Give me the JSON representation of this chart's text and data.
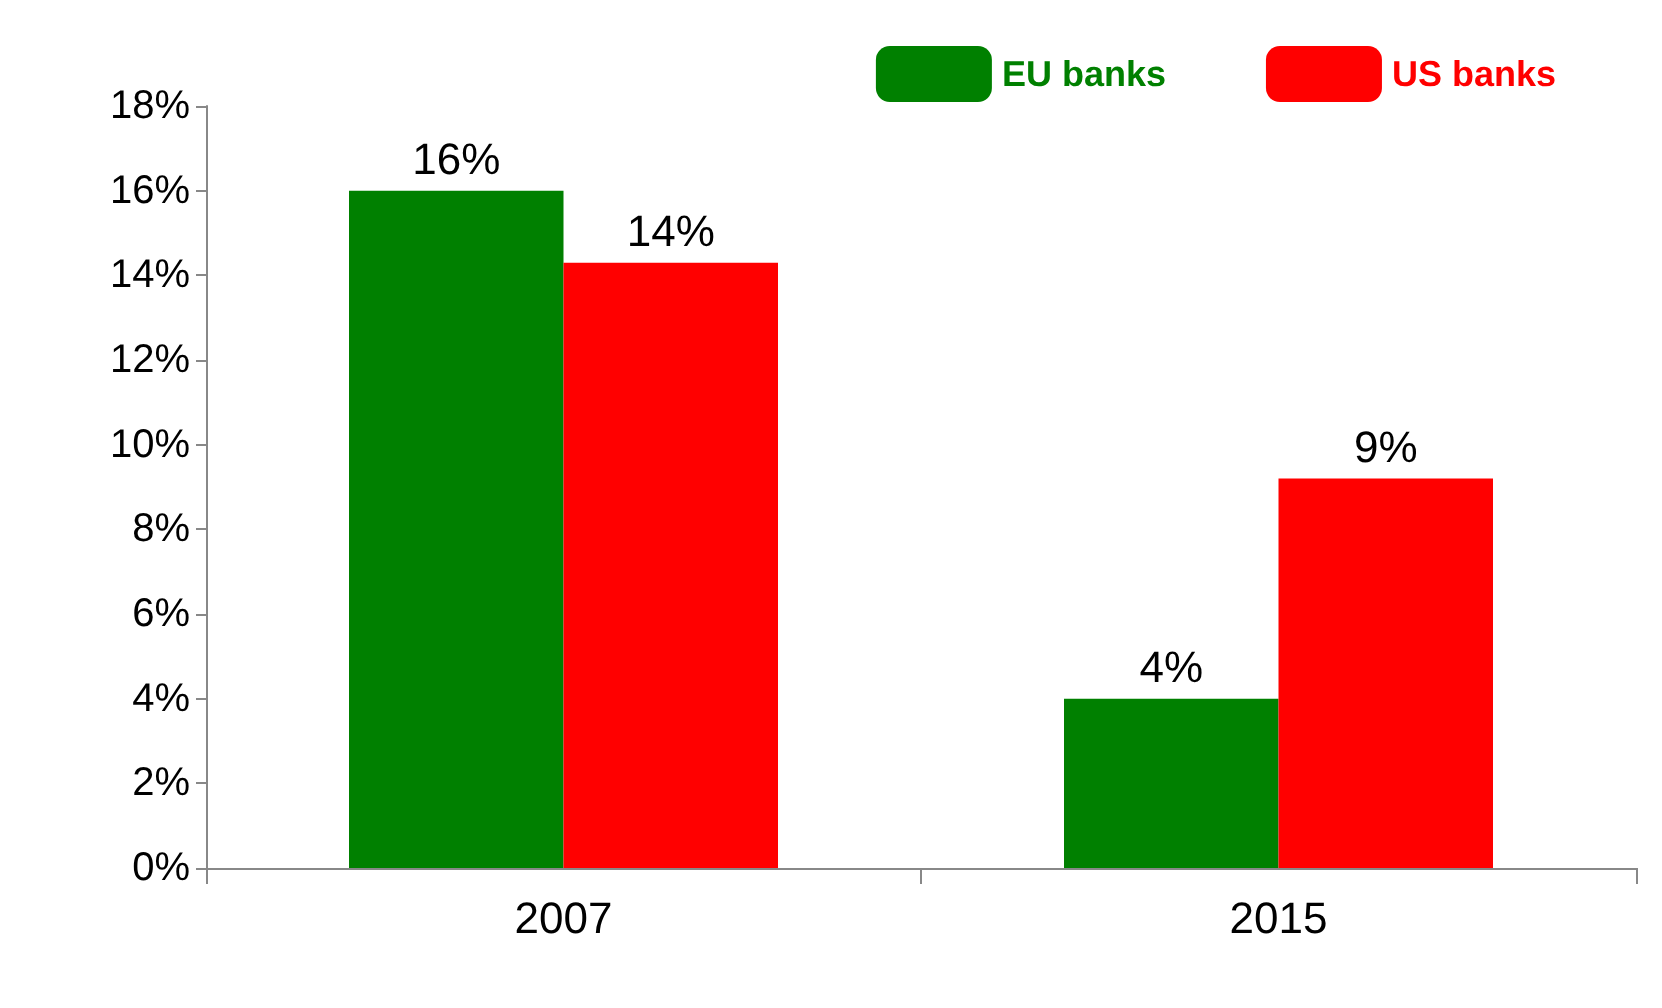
{
  "chart_data": {
    "type": "bar",
    "categories": [
      "2007",
      "2015"
    ],
    "series": [
      {
        "name": "EU banks",
        "color": "#008000",
        "values": [
          16,
          4
        ],
        "value_labels": [
          "16%",
          "4%"
        ]
      },
      {
        "name": "US banks",
        "color": "#ff0000",
        "values": [
          14.3,
          9.2
        ],
        "value_labels": [
          "14%",
          "9%"
        ]
      }
    ],
    "ylim": [
      0,
      18
    ],
    "yticks": [
      {
        "value": 0,
        "label": "0%"
      },
      {
        "value": 2,
        "label": "2%"
      },
      {
        "value": 4,
        "label": "4%"
      },
      {
        "value": 6,
        "label": "6%"
      },
      {
        "value": 8,
        "label": "8%"
      },
      {
        "value": 10,
        "label": "10%"
      },
      {
        "value": 12,
        "label": "12%"
      },
      {
        "value": 14,
        "label": "14%"
      },
      {
        "value": 16,
        "label": "16%"
      },
      {
        "value": 18,
        "label": "18%"
      }
    ],
    "grid": false,
    "legend": "top right"
  }
}
